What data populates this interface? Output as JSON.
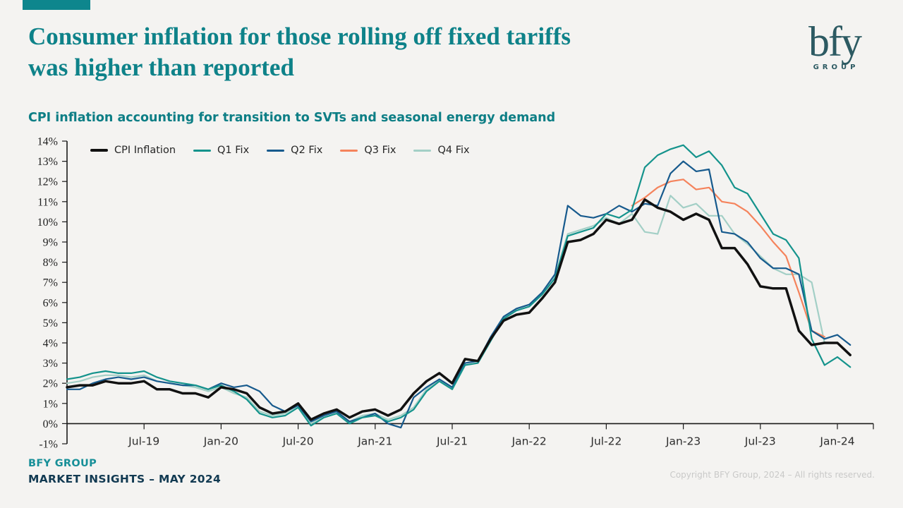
{
  "accent_color": "#0e868d",
  "header": {
    "title_line1": "Consumer inflation for those rolling off fixed tariffs",
    "title_line2": "was higher than reported",
    "subtitle": "CPI inflation accounting for transition to SVTs and seasonal energy demand"
  },
  "logo": {
    "text": "bfy",
    "subtext": "GROUP"
  },
  "footer": {
    "company": "BFY GROUP",
    "publication": "MARKET INSIGHTS – MAY 2024",
    "copyright": "Copyright BFY Group, 2024 – All rights reserved."
  },
  "chart_data": {
    "type": "line",
    "title": "CPI inflation accounting for transition to SVTs and seasonal energy demand",
    "x_unit": "month",
    "x_start": "Jan-19",
    "x_end": "Feb-24",
    "x_tick_labels": [
      "Jul-19",
      "Jan-20",
      "Jul-20",
      "Jan-21",
      "Jul-21",
      "Jan-22",
      "Jul-22",
      "Jan-23",
      "Jul-23",
      "Jan-24"
    ],
    "x_tick_indices": [
      6,
      12,
      18,
      24,
      30,
      36,
      42,
      48,
      54,
      60
    ],
    "y_tick_labels": [
      "14%",
      "13%",
      "12%",
      "11%",
      "10%",
      "9%",
      "8%",
      "7%",
      "6%",
      "5%",
      "4%",
      "3%",
      "2%",
      "1%",
      "0%",
      "-1%"
    ],
    "ylim": [
      -1,
      14
    ],
    "grid": false,
    "legend_position": "top-left-inside",
    "series": [
      {
        "name": "CPI Inflation",
        "color": "#111111",
        "width": 3.5,
        "start_index": 0,
        "values": [
          1.8,
          1.9,
          1.9,
          2.1,
          2.0,
          2.0,
          2.1,
          1.7,
          1.7,
          1.5,
          1.5,
          1.3,
          1.8,
          1.7,
          1.5,
          0.8,
          0.5,
          0.6,
          1.0,
          0.2,
          0.5,
          0.7,
          0.3,
          0.6,
          0.7,
          0.4,
          0.7,
          1.5,
          2.1,
          2.5,
          2.0,
          3.2,
          3.1,
          4.2,
          5.1,
          5.4,
          5.5,
          6.2,
          7.0,
          9.0,
          9.1,
          9.4,
          10.1,
          9.9,
          10.1,
          11.1,
          10.7,
          10.5,
          10.1,
          10.4,
          10.1,
          8.7,
          8.7,
          7.9,
          6.8,
          6.7,
          6.7,
          4.6,
          3.9,
          4.0,
          4.0,
          3.4
        ]
      },
      {
        "name": "Q1 Fix",
        "color": "#14938c",
        "width": 2.2,
        "start_index": 0,
        "values": [
          2.2,
          2.3,
          2.5,
          2.6,
          2.5,
          2.5,
          2.6,
          2.3,
          2.1,
          2.0,
          1.9,
          1.7,
          1.9,
          1.6,
          1.2,
          0.5,
          0.3,
          0.4,
          0.8,
          -0.1,
          0.3,
          0.5,
          0.0,
          0.3,
          0.4,
          0.1,
          0.3,
          0.7,
          1.6,
          2.1,
          1.7,
          2.9,
          3.0,
          4.1,
          5.2,
          5.6,
          5.8,
          6.4,
          7.2,
          9.3,
          9.5,
          9.7,
          10.4,
          10.2,
          10.6,
          12.7,
          13.3,
          13.6,
          13.8,
          13.2,
          13.5,
          12.8,
          11.7,
          11.4,
          10.4,
          9.4,
          9.1,
          8.2,
          4.2,
          2.9,
          3.3,
          2.8
        ]
      },
      {
        "name": "Q2 Fix",
        "color": "#175a8d",
        "width": 2.2,
        "start_index": 0,
        "values": [
          1.7,
          1.7,
          2.0,
          2.2,
          2.3,
          2.2,
          2.3,
          2.1,
          2.0,
          1.9,
          1.9,
          1.7,
          2.0,
          1.8,
          1.9,
          1.6,
          0.9,
          0.6,
          0.9,
          0.1,
          0.4,
          0.6,
          0.1,
          0.3,
          0.5,
          0.0,
          -0.2,
          1.3,
          1.8,
          2.2,
          1.8,
          3.0,
          3.1,
          4.3,
          5.3,
          5.7,
          5.9,
          6.5,
          7.4,
          10.8,
          10.3,
          10.2,
          10.4,
          10.8,
          10.5,
          10.9,
          10.8,
          12.4,
          13.0,
          12.5,
          12.6,
          9.5,
          9.4,
          9.0,
          8.2,
          7.7,
          7.7,
          7.4,
          4.6,
          4.2,
          4.4,
          3.9
        ]
      },
      {
        "name": "Q3 Fix",
        "color": "#f5835c",
        "width": 2.2,
        "start_index": 44,
        "values": [
          10.8,
          11.2,
          11.7,
          12.0,
          12.1,
          11.6,
          11.7,
          11.0,
          10.9,
          10.5,
          9.8,
          9.0,
          8.3,
          6.5,
          4.6,
          4.3
        ]
      },
      {
        "name": "Q4 Fix",
        "color": "#a3cfc6",
        "width": 2.2,
        "start_index": 0,
        "values": [
          2.0,
          2.1,
          2.3,
          2.4,
          2.4,
          2.3,
          2.4,
          2.1,
          2.0,
          1.9,
          1.8,
          1.6,
          1.8,
          1.5,
          1.3,
          0.6,
          0.4,
          0.5,
          0.9,
          0.0,
          0.4,
          0.6,
          0.1,
          0.4,
          0.5,
          0.2,
          0.4,
          0.8,
          1.7,
          2.2,
          1.8,
          3.0,
          3.1,
          4.2,
          5.3,
          5.7,
          5.9,
          6.5,
          7.3,
          9.4,
          9.6,
          9.8,
          10.2,
          9.9,
          10.4,
          9.5,
          9.4,
          11.3,
          10.7,
          10.9,
          10.3,
          10.3,
          9.4,
          8.9,
          8.3,
          7.7,
          7.4,
          7.4,
          7.0,
          4.0
        ]
      }
    ]
  }
}
